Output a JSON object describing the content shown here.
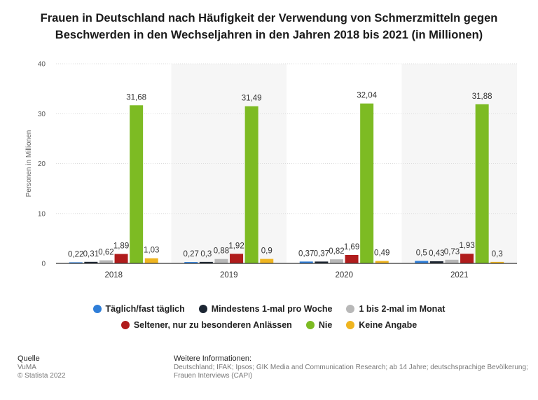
{
  "title": "Frauen in Deutschland nach Häufigkeit der Verwendung von Schmerzmitteln gegen Beschwerden in den Wechseljahren in den Jahren 2018 bis 2021 (in Millionen)",
  "chart_data": {
    "type": "bar",
    "categories": [
      "2018",
      "2019",
      "2020",
      "2021"
    ],
    "series": [
      {
        "name": "Täglich/fast täglich",
        "color": "#2f7ed8",
        "values": [
          0.22,
          0.27,
          0.37,
          0.5
        ],
        "labels": [
          "0,22",
          "0,27",
          "0,37",
          "0,5"
        ]
      },
      {
        "name": "Mindestens 1-mal pro Woche",
        "color": "#1c2633",
        "values": [
          0.31,
          0.3,
          0.37,
          0.43
        ],
        "labels": [
          "0,31",
          "0,3",
          "0,37",
          "0,43"
        ]
      },
      {
        "name": "1 bis 2-mal im Monat",
        "color": "#b8b8b8",
        "values": [
          0.62,
          0.88,
          0.82,
          0.73
        ],
        "labels": [
          "0,62",
          "0,88",
          "0,82",
          "0,73"
        ]
      },
      {
        "name": "Seltener, nur zu besonderen Anlässen",
        "color": "#b01c1c",
        "values": [
          1.89,
          1.92,
          1.69,
          1.93
        ],
        "labels": [
          "1,89",
          "1,92",
          "1,69",
          "1,93"
        ]
      },
      {
        "name": "Nie",
        "color": "#7dbb23",
        "values": [
          31.68,
          31.49,
          32.04,
          31.88
        ],
        "labels": [
          "31,68",
          "31,49",
          "32,04",
          "31,88"
        ]
      },
      {
        "name": "Keine Angabe",
        "color": "#efb520",
        "values": [
          1.03,
          0.9,
          0.49,
          0.3
        ],
        "labels": [
          "1,03",
          "0,9",
          "0,49",
          "0,3"
        ]
      }
    ],
    "ylabel": "Personen in Millionen",
    "ylim": [
      0,
      40
    ],
    "yticks": [
      "0",
      "10",
      "20",
      "30",
      "40"
    ],
    "grid": true
  },
  "legend": {
    "rows": [
      [
        "Täglich/fast täglich",
        "Mindestens 1-mal pro Woche",
        "1 bis 2-mal im Monat"
      ],
      [
        "Seltener, nur zu besonderen Anlässen",
        "Nie",
        "Keine Angabe"
      ]
    ]
  },
  "footer": {
    "source_heading": "Quelle",
    "source_lines": [
      "VuMA",
      "© Statista 2022"
    ],
    "info_heading": "Weitere Informationen:",
    "info_text": "Deutschland; IFAK; Ipsos; GIK Media and Communication Research; ab 14 Jahre; deutschsprachige Bevölkerung; Frauen Interviews (CAPI)"
  }
}
